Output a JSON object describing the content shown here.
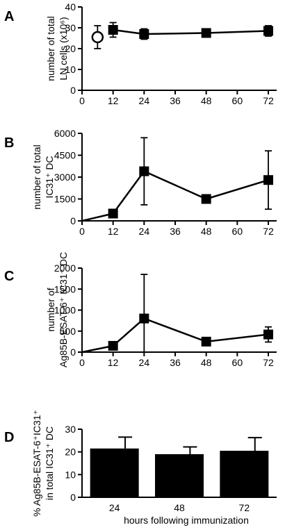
{
  "chart_data": [
    {
      "type": "line",
      "panel_label": "A",
      "ylabel_lines": [
        "number of total",
        "LN cells (x10⁶)"
      ],
      "xlim": [
        0,
        72
      ],
      "ylim": [
        0,
        40
      ],
      "xticks": [
        0,
        12,
        24,
        36,
        48,
        60,
        72
      ],
      "yticks": [
        0,
        10,
        20,
        30,
        40
      ],
      "grid": false,
      "series": [
        {
          "marker": "open-circle",
          "x": [
            6
          ],
          "y": [
            25.5
          ],
          "err": [
            5.5
          ]
        },
        {
          "marker": "filled-square",
          "x": [
            12,
            24,
            48,
            72
          ],
          "y": [
            29,
            27,
            27.5,
            28.5
          ],
          "err": [
            3.5,
            2.5,
            2,
            2.5
          ]
        }
      ]
    },
    {
      "type": "line",
      "panel_label": "B",
      "ylabel_lines": [
        "number of total",
        "IC31⁺ DC"
      ],
      "xlim": [
        0,
        72
      ],
      "ylim": [
        0,
        6000
      ],
      "xticks": [
        0,
        12,
        24,
        36,
        48,
        60,
        72
      ],
      "yticks": [
        0,
        1500,
        3000,
        4500,
        6000
      ],
      "grid": false,
      "series": [
        {
          "marker": "filled-square",
          "x": [
            0,
            12,
            24,
            48,
            72
          ],
          "y": [
            0,
            500,
            3400,
            1500,
            2800
          ],
          "err": [
            0,
            0,
            2300,
            0,
            2000
          ]
        }
      ]
    },
    {
      "type": "line",
      "panel_label": "C",
      "ylabel_lines": [
        "number of",
        "Ag85B-ESAT-6⁺ IC31⁺ DC"
      ],
      "xlim": [
        0,
        72
      ],
      "ylim": [
        0,
        2000
      ],
      "xticks": [
        0,
        12,
        24,
        36,
        48,
        60,
        72
      ],
      "yticks": [
        0,
        500,
        1000,
        1500,
        2000
      ],
      "grid": false,
      "series": [
        {
          "marker": "filled-square",
          "x": [
            0,
            12,
            24,
            48,
            72
          ],
          "y": [
            0,
            150,
            800,
            250,
            420
          ],
          "err": [
            0,
            0,
            1050,
            0,
            180
          ]
        }
      ]
    },
    {
      "type": "bar",
      "panel_label": "D",
      "ylabel_lines": [
        "% Ag85B-ESAT-6⁺IC31⁺",
        "in total IC31⁺ DC"
      ],
      "xlabel": "hours following immunization",
      "categories": [
        "24",
        "48",
        "72"
      ],
      "values": [
        21.5,
        19,
        20.5
      ],
      "err": [
        5,
        3.2,
        5.8
      ],
      "ylim": [
        0,
        30
      ],
      "yticks": [
        0,
        10,
        20,
        30
      ],
      "grid": false
    }
  ]
}
